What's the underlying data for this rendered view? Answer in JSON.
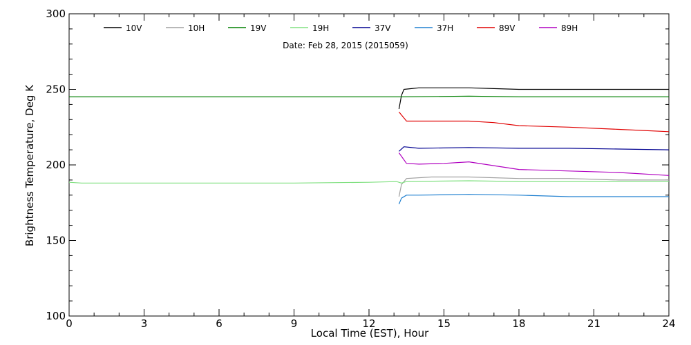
{
  "chart_data": {
    "type": "line",
    "title": "",
    "annotation": "Date: Feb 28, 2015 (2015059)",
    "xlabel": "Local Time (EST), Hour",
    "ylabel": "Brightness Temperature, Deg K",
    "xlim": [
      0,
      24
    ],
    "ylim": [
      100,
      300
    ],
    "xticks": [
      0,
      3,
      6,
      9,
      12,
      15,
      18,
      21,
      24
    ],
    "yticks": [
      100,
      150,
      200,
      250,
      300
    ],
    "grid": false,
    "legend_position": "top",
    "series": [
      {
        "name": "10V",
        "color": "#000000",
        "points": [
          [
            13.2,
            237
          ],
          [
            13.3,
            246
          ],
          [
            13.4,
            250
          ],
          [
            14,
            251
          ],
          [
            16,
            251
          ],
          [
            18,
            250
          ],
          [
            20,
            250
          ],
          [
            22,
            250
          ],
          [
            24,
            250
          ]
        ]
      },
      {
        "name": "10H",
        "color": "#a0a0a0",
        "points": [
          [
            13.2,
            179
          ],
          [
            13.3,
            187
          ],
          [
            13.5,
            191
          ],
          [
            14.5,
            192
          ],
          [
            16,
            192
          ],
          [
            18,
            191
          ],
          [
            20,
            191
          ],
          [
            22,
            190
          ],
          [
            24,
            190
          ]
        ]
      },
      {
        "name": "19V",
        "color": "#008000",
        "points": [
          [
            0,
            245
          ],
          [
            3,
            245
          ],
          [
            6,
            245
          ],
          [
            9,
            245
          ],
          [
            12,
            245
          ],
          [
            13.1,
            245
          ],
          [
            13.3,
            245
          ],
          [
            16,
            245.5
          ],
          [
            18,
            245
          ],
          [
            21,
            245
          ],
          [
            24,
            245
          ]
        ]
      },
      {
        "name": "19H",
        "color": "#80e080",
        "points": [
          [
            0,
            188.5
          ],
          [
            0.5,
            188
          ],
          [
            3,
            188
          ],
          [
            6,
            188
          ],
          [
            9,
            188
          ],
          [
            12,
            188.5
          ],
          [
            13.1,
            189
          ],
          [
            13.3,
            188
          ],
          [
            13.5,
            189
          ],
          [
            16,
            189.5
          ],
          [
            18,
            189
          ],
          [
            21,
            189
          ],
          [
            24,
            189
          ]
        ]
      },
      {
        "name": "37V",
        "color": "#000090",
        "points": [
          [
            13.2,
            209
          ],
          [
            13.4,
            212
          ],
          [
            14,
            211
          ],
          [
            16,
            211.5
          ],
          [
            18,
            211
          ],
          [
            20,
            211
          ],
          [
            22,
            210.5
          ],
          [
            24,
            210
          ]
        ]
      },
      {
        "name": "37H",
        "color": "#2080d0",
        "points": [
          [
            13.2,
            174
          ],
          [
            13.3,
            178
          ],
          [
            13.5,
            180
          ],
          [
            14,
            180
          ],
          [
            16,
            180.5
          ],
          [
            18,
            180
          ],
          [
            20,
            179
          ],
          [
            22,
            179
          ],
          [
            24,
            179
          ]
        ]
      },
      {
        "name": "89V",
        "color": "#e00000",
        "points": [
          [
            13.2,
            235
          ],
          [
            13.5,
            229
          ],
          [
            14,
            229
          ],
          [
            16,
            229
          ],
          [
            17,
            228
          ],
          [
            18,
            226
          ],
          [
            20,
            225
          ],
          [
            22,
            223.5
          ],
          [
            24,
            222
          ]
        ]
      },
      {
        "name": "89H",
        "color": "#b000c0",
        "points": [
          [
            13.2,
            208
          ],
          [
            13.5,
            201
          ],
          [
            14,
            200.5
          ],
          [
            15,
            201
          ],
          [
            16,
            202
          ],
          [
            17,
            199.5
          ],
          [
            18,
            197
          ],
          [
            20,
            196
          ],
          [
            22,
            195
          ],
          [
            24,
            193
          ]
        ]
      }
    ]
  }
}
